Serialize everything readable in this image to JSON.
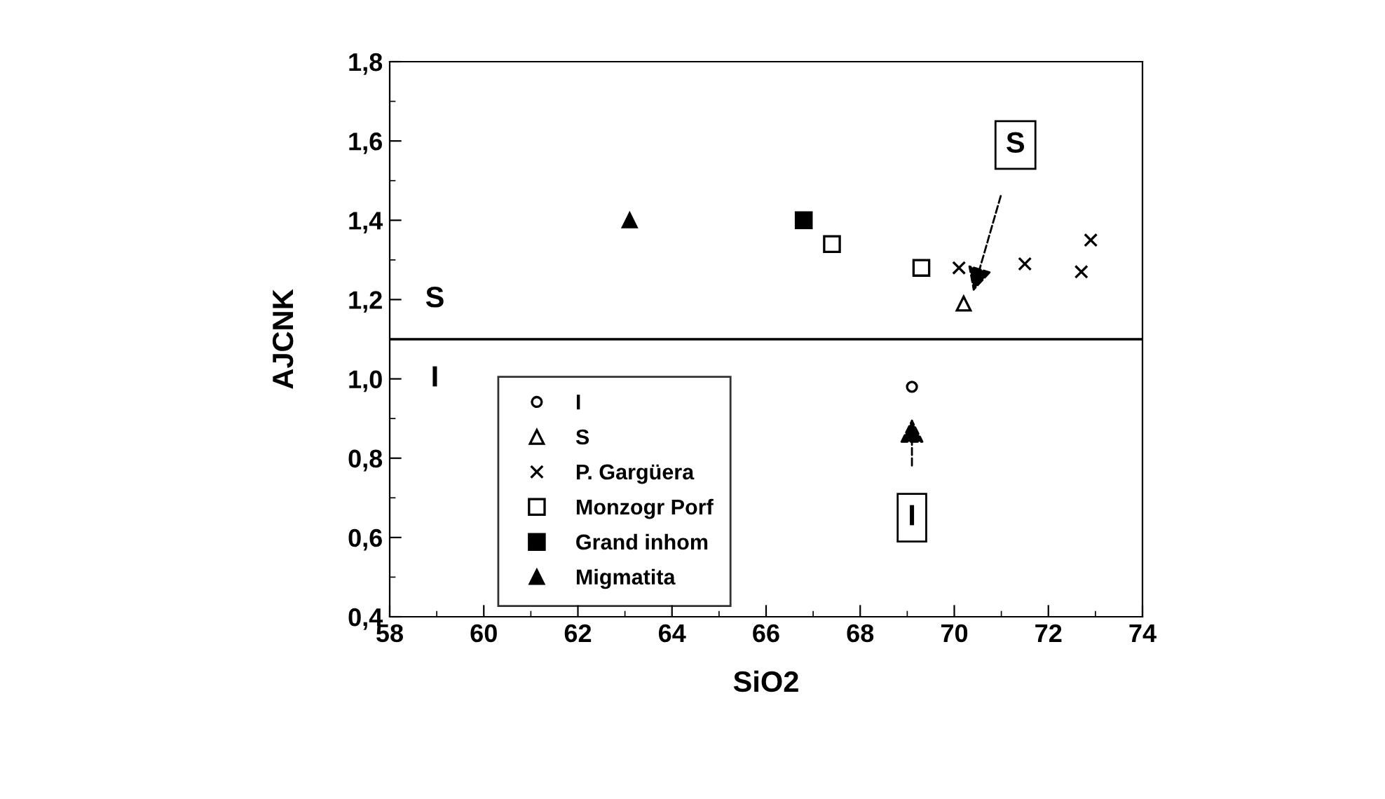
{
  "chart_data": {
    "type": "scatter",
    "xlabel": "SiO2",
    "ylabel": "AJCNK",
    "xlim": [
      58,
      74
    ],
    "xticks": [
      58,
      60,
      62,
      64,
      66,
      68,
      70,
      72,
      74
    ],
    "ylim": [
      0.4,
      1.8
    ],
    "yticks": [
      {
        "value": 0.4,
        "label": "0,4"
      },
      {
        "value": 0.6,
        "label": "0,6"
      },
      {
        "value": 0.8,
        "label": "0,8"
      },
      {
        "value": 1.0,
        "label": "1,0"
      },
      {
        "value": 1.2,
        "label": "1,2"
      },
      {
        "value": 1.4,
        "label": "1,4"
      },
      {
        "value": 1.6,
        "label": "1,6"
      },
      {
        "value": 1.8,
        "label": "1,8"
      }
    ],
    "series": [
      {
        "name": "I",
        "color": "#000000",
        "marker": "circle",
        "x": [
          69.1
        ],
        "values": [
          0.98
        ]
      },
      {
        "name": "S",
        "color": "#000000",
        "marker": "triangle",
        "x": [
          70.2
        ],
        "values": [
          1.19
        ]
      },
      {
        "name": "P. Gargüera",
        "color": "#000000",
        "marker": "cross",
        "x": [
          70.1,
          71.5,
          72.9,
          72.7
        ],
        "values": [
          1.28,
          1.29,
          1.35,
          1.27
        ]
      },
      {
        "name": "Monzogr Porf",
        "color": "#000000",
        "marker": "square",
        "x": [
          67.4,
          69.3
        ],
        "values": [
          1.34,
          1.28
        ]
      },
      {
        "name": "Grand inhom",
        "color": "#000000",
        "marker": "square",
        "x": [
          66.8
        ],
        "values": [
          1.4
        ]
      },
      {
        "name": "Migmatita",
        "color": "#000000",
        "marker": "triangle",
        "x": [
          63.1
        ],
        "values": [
          1.4
        ]
      }
    ],
    "ref_lines": [
      {
        "axis": "y",
        "value": 1.1,
        "color": "#000000"
      }
    ],
    "annotations": [
      "S",
      "I",
      "S",
      "I"
    ],
    "legend": "bottom left",
    "grid": false
  }
}
